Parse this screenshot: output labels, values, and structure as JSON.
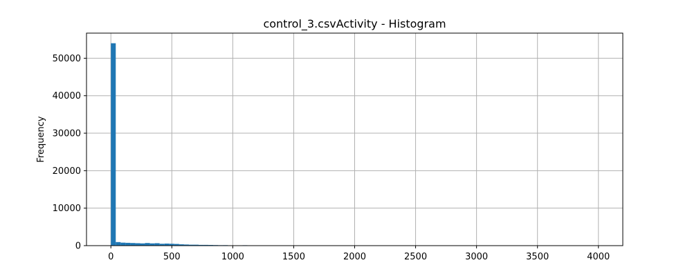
{
  "chart_data": {
    "type": "bar",
    "title": "control_3.csvActivity - Histogram",
    "xlabel": "",
    "ylabel": "Frequency",
    "xlim": [
      -200,
      4200
    ],
    "ylim": [
      0,
      56700
    ],
    "grid": true,
    "x_ticks": [
      "0",
      "500",
      "1000",
      "1500",
      "2000",
      "2500",
      "3000",
      "3500",
      "4000"
    ],
    "y_ticks": [
      "0",
      "10000",
      "20000",
      "30000",
      "40000",
      "50000"
    ],
    "bar_color": "#1f77b4",
    "bin_width": 40,
    "bins": [
      {
        "x0": 0,
        "value": 54000
      },
      {
        "x0": 40,
        "value": 950
      },
      {
        "x0": 80,
        "value": 800
      },
      {
        "x0": 120,
        "value": 750
      },
      {
        "x0": 160,
        "value": 700
      },
      {
        "x0": 200,
        "value": 650
      },
      {
        "x0": 240,
        "value": 600
      },
      {
        "x0": 280,
        "value": 700
      },
      {
        "x0": 320,
        "value": 600
      },
      {
        "x0": 360,
        "value": 650
      },
      {
        "x0": 400,
        "value": 500
      },
      {
        "x0": 440,
        "value": 550
      },
      {
        "x0": 480,
        "value": 500
      },
      {
        "x0": 520,
        "value": 450
      },
      {
        "x0": 560,
        "value": 350
      },
      {
        "x0": 600,
        "value": 300
      },
      {
        "x0": 640,
        "value": 250
      },
      {
        "x0": 680,
        "value": 250
      },
      {
        "x0": 720,
        "value": 200
      },
      {
        "x0": 760,
        "value": 200
      },
      {
        "x0": 800,
        "value": 180
      },
      {
        "x0": 840,
        "value": 150
      },
      {
        "x0": 880,
        "value": 120
      },
      {
        "x0": 920,
        "value": 130
      },
      {
        "x0": 960,
        "value": 90
      },
      {
        "x0": 1000,
        "value": 80
      },
      {
        "x0": 1040,
        "value": 60
      },
      {
        "x0": 1080,
        "value": 110
      },
      {
        "x0": 1120,
        "value": 40
      },
      {
        "x0": 1160,
        "value": 30
      },
      {
        "x0": 1200,
        "value": 20
      },
      {
        "x0": 1240,
        "value": 15
      },
      {
        "x0": 1280,
        "value": 10
      },
      {
        "x0": 1320,
        "value": 10
      },
      {
        "x0": 1360,
        "value": 8
      },
      {
        "x0": 1400,
        "value": 5
      },
      {
        "x0": 1440,
        "value": 4
      },
      {
        "x0": 1480,
        "value": 3
      },
      {
        "x0": 1520,
        "value": 2
      },
      {
        "x0": 1560,
        "value": 2
      }
    ]
  }
}
